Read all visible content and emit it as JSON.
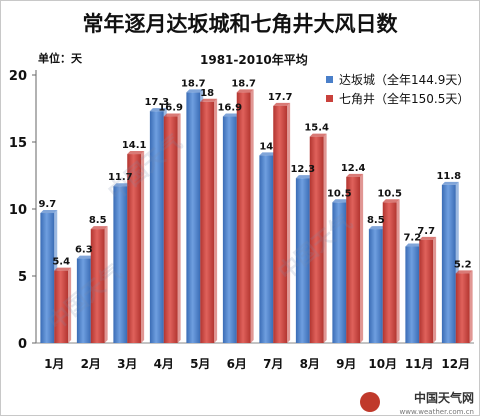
{
  "chart_data": {
    "type": "bar",
    "title": "常年逐月达坂城和七角井大风日数",
    "subtitle": "1981-2010年平均",
    "ylabel": "单位：天",
    "categories": [
      "1月",
      "2月",
      "3月",
      "4月",
      "5月",
      "6月",
      "7月",
      "8月",
      "9月",
      "10月",
      "11月",
      "12月"
    ],
    "ylim": [
      0,
      20
    ],
    "yticks": [
      0,
      5,
      10,
      15,
      20
    ],
    "grid": false,
    "legend_position": "top-right",
    "series": [
      {
        "name": "达坂城（全年144.9天）",
        "color": "#4a7fc9",
        "values": [
          9.7,
          6.3,
          11.7,
          17.3,
          18.7,
          16.9,
          14,
          12.3,
          10.5,
          8.5,
          7.2,
          11.8
        ]
      },
      {
        "name": "七角井（全年150.5天）",
        "color": "#c9413c",
        "values": [
          5.4,
          8.5,
          14.1,
          16.9,
          18,
          18.7,
          17.7,
          15.4,
          12.4,
          10.5,
          7.7,
          5.2
        ]
      }
    ]
  },
  "watermark": "中国天气",
  "brand": {
    "name": "中国天气网",
    "url": "www.weather.com.cn"
  }
}
